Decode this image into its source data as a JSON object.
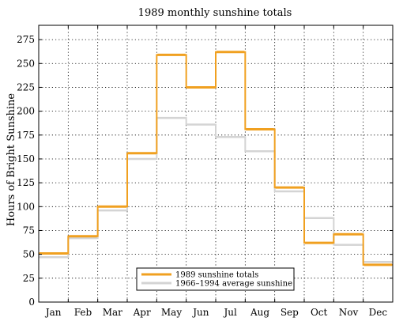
{
  "chart_data": {
    "type": "line",
    "step": true,
    "title": "1989 monthly sunshine totals",
    "xlabel": "",
    "ylabel": "Hours of Bright Sunshine",
    "categories": [
      "Jan",
      "Feb",
      "Mar",
      "Apr",
      "May",
      "Jun",
      "Jul",
      "Aug",
      "Sep",
      "Oct",
      "Nov",
      "Dec"
    ],
    "ylim": [
      0,
      290
    ],
    "yticks": [
      0,
      25,
      50,
      75,
      100,
      125,
      150,
      175,
      200,
      225,
      250,
      275
    ],
    "grid": true,
    "legend": "bottom-center",
    "series": [
      {
        "name": "1989 sunshine totals",
        "color": "#f0a020",
        "values": [
          51,
          69,
          100,
          156,
          259,
          225,
          262,
          181,
          120,
          62,
          71,
          39
        ]
      },
      {
        "name": "1966–1994 average sunshine",
        "color": "#d4d4d4",
        "values": [
          47,
          67,
          96,
          150,
          193,
          186,
          173,
          158,
          116,
          88,
          60,
          42
        ]
      }
    ]
  }
}
